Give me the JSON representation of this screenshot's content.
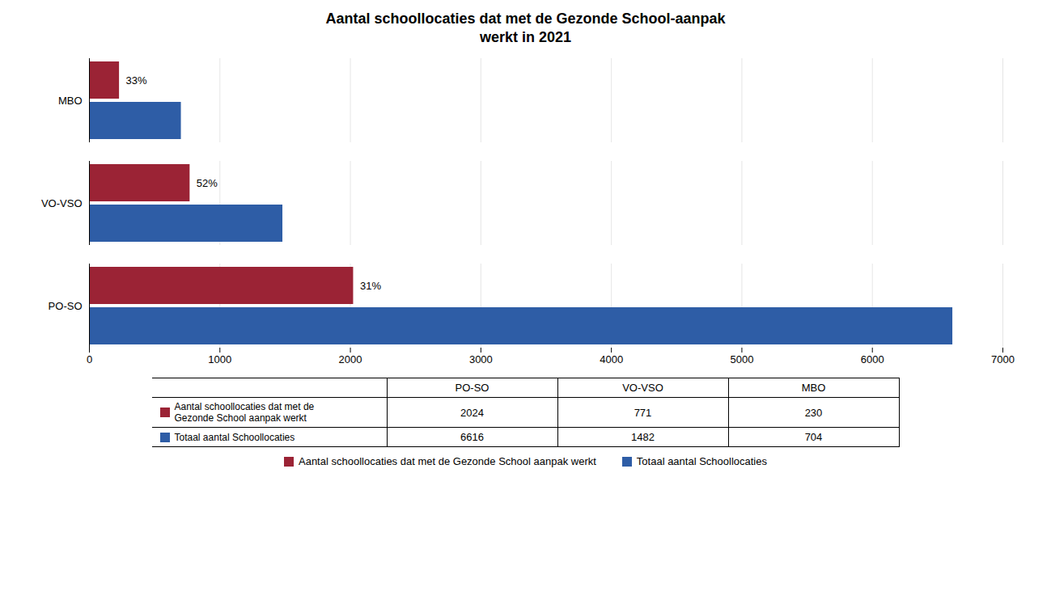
{
  "chart_data": {
    "type": "bar",
    "orientation": "horizontal",
    "title": "Aantal schoollocaties dat met de Gezonde School-aanpak\nwerkt in 2021",
    "categories": [
      "PO-SO",
      "VO-VSO",
      "MBO"
    ],
    "series": [
      {
        "name": "Aantal schoollocaties dat met de Gezonde School aanpak werkt",
        "color": "#9B2335",
        "values": [
          2024,
          771,
          230
        ],
        "annotations": [
          "31%",
          "52%",
          "33%"
        ]
      },
      {
        "name": "Totaal aantal Schoollocaties",
        "color": "#2E5DA6",
        "values": [
          6616,
          1482,
          704
        ]
      }
    ],
    "xlim": [
      0,
      7000
    ],
    "xticks": [
      0,
      1000,
      2000,
      3000,
      4000,
      5000,
      6000,
      7000
    ],
    "grid": true,
    "legend": "bottom",
    "table": {
      "columns": [
        "PO-SO",
        "VO-VSO",
        "MBO"
      ],
      "rows": [
        {
          "label": [
            "Aantal schoollocaties dat met de",
            "Gezonde School aanpak werkt"
          ],
          "color": "#9B2335",
          "values": [
            2024,
            771,
            230
          ]
        },
        {
          "label": [
            "Totaal aantal Schoollocaties"
          ],
          "color": "#2E5DA6",
          "values": [
            6616,
            1482,
            704
          ]
        }
      ]
    }
  }
}
